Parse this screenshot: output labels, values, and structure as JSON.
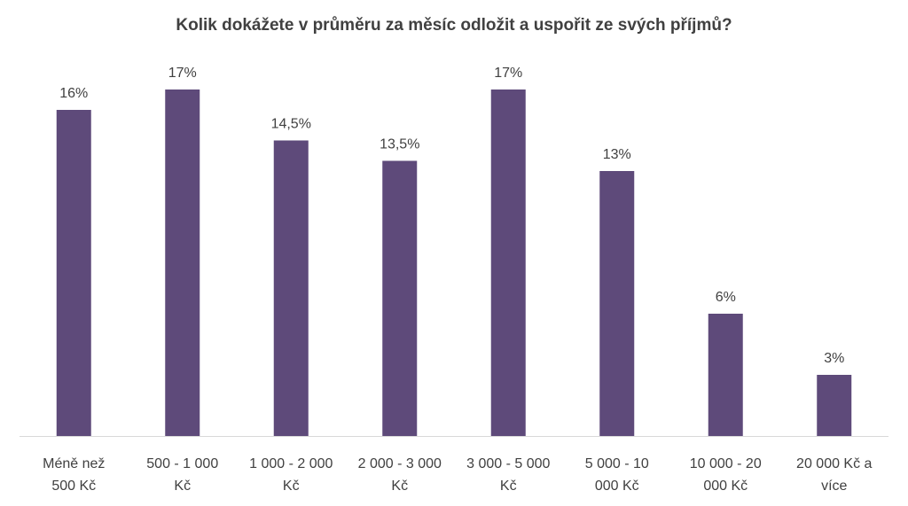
{
  "chart_data": {
    "type": "bar",
    "title": "Kolik dokážete v průměru za měsíc odložit a uspořit ze svých příjmů?",
    "categories": [
      [
        "Méně než",
        "500 Kč"
      ],
      [
        "500 - 1 000",
        "Kč"
      ],
      [
        "1 000 - 2 000",
        "Kč"
      ],
      [
        "2 000 - 3 000",
        "Kč"
      ],
      [
        "3 000 - 5 000",
        "Kč"
      ],
      [
        "5 000 - 10",
        "000 Kč"
      ],
      [
        "10 000 - 20",
        "000 Kč"
      ],
      [
        "20 000 Kč a",
        "více"
      ]
    ],
    "values": [
      16,
      17,
      14.5,
      13.5,
      17,
      13,
      6,
      3
    ],
    "data_labels": [
      "16%",
      "17%",
      "14,5%",
      "13,5%",
      "17%",
      "13%",
      "6%",
      "3%"
    ],
    "ylim": [
      0,
      17
    ],
    "xlabel": "",
    "ylabel": "",
    "grid": false,
    "legend": "none",
    "colors": {
      "bar": "#5E4A7A",
      "axis": "#D9D9D9",
      "title": "#404040",
      "label": "#404040"
    }
  }
}
